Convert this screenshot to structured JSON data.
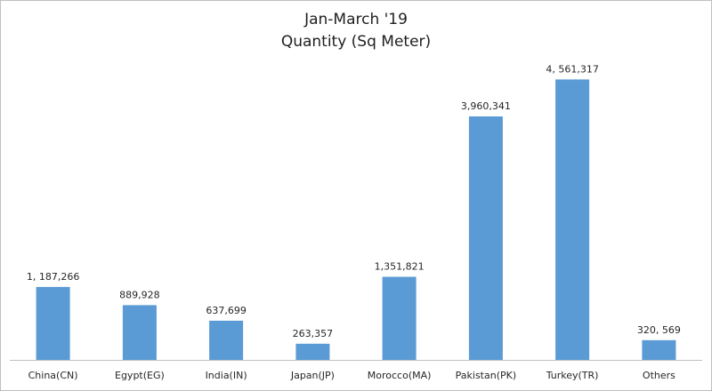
{
  "chart_data": {
    "type": "bar",
    "title": "Jan-March '19",
    "subtitle": "Quantity (Sq Meter)",
    "categories": [
      "China(CN)",
      "Egypt(EG)",
      "India(IN)",
      "Japan(JP)",
      "Morocco(MA)",
      "Pakistan(PK)",
      "Turkey(TR)",
      "Others"
    ],
    "values": [
      1187266,
      889928,
      637699,
      263357,
      1351821,
      3960341,
      4561317,
      320569
    ],
    "value_labels": [
      "1, 187,266",
      "889,928",
      "637,699",
      "263,357",
      "1,351,821",
      "3,960,341",
      "4, 561,317",
      "320, 569"
    ],
    "xlabel": "",
    "ylabel": "",
    "ylim": [
      0,
      4900000
    ],
    "grid": false,
    "legend": "none",
    "bar_color": "#5b9bd5"
  }
}
